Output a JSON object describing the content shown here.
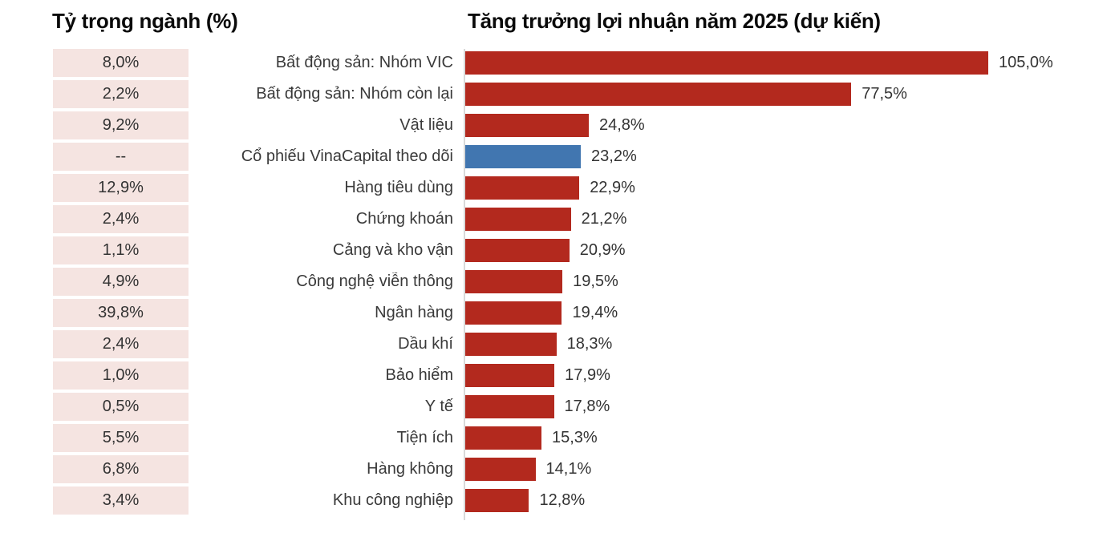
{
  "header": {
    "left_title": "Tỷ trọng ngành (%)",
    "right_title": "Tăng trưởng lợi nhuận năm 2025 (dự kiến)"
  },
  "colors": {
    "bar_red": "#b3291e",
    "bar_blue": "#4176b0",
    "weight_cell_bg": "#f5e4e1",
    "axis_line": "#d9d9d9",
    "title_text": "#0a0a0a",
    "body_text": "#3a3a3a"
  },
  "chart_data": {
    "type": "bar",
    "orientation": "horizontal",
    "title": "Tăng trưởng lợi nhuận năm 2025 (dự kiến)",
    "weight_column_title": "Tỷ trọng ngành (%)",
    "value_axis_max": 105.0,
    "grid": false,
    "legend": false,
    "rows": [
      {
        "weight": "8,0%",
        "label": "Bất động sản: Nhóm VIC",
        "value": 105.0,
        "value_label": "105,0%",
        "highlight": false
      },
      {
        "weight": "2,2%",
        "label": "Bất động sản: Nhóm còn lại",
        "value": 77.5,
        "value_label": "77,5%",
        "highlight": false
      },
      {
        "weight": "9,2%",
        "label": "Vật liệu",
        "value": 24.8,
        "value_label": "24,8%",
        "highlight": false
      },
      {
        "weight": "--",
        "label": "Cổ phiếu VinaCapital theo dõi",
        "value": 23.2,
        "value_label": "23,2%",
        "highlight": true
      },
      {
        "weight": "12,9%",
        "label": "Hàng tiêu dùng",
        "value": 22.9,
        "value_label": "22,9%",
        "highlight": false
      },
      {
        "weight": "2,4%",
        "label": "Chứng khoán",
        "value": 21.2,
        "value_label": "21,2%",
        "highlight": false
      },
      {
        "weight": "1,1%",
        "label": "Cảng và kho vận",
        "value": 20.9,
        "value_label": "20,9%",
        "highlight": false
      },
      {
        "weight": "4,9%",
        "label": "Công nghệ viễn thông",
        "value": 19.5,
        "value_label": "19,5%",
        "highlight": false
      },
      {
        "weight": "39,8%",
        "label": "Ngân hàng",
        "value": 19.4,
        "value_label": "19,4%",
        "highlight": false
      },
      {
        "weight": "2,4%",
        "label": "Dầu khí",
        "value": 18.3,
        "value_label": "18,3%",
        "highlight": false
      },
      {
        "weight": "1,0%",
        "label": "Bảo hiểm",
        "value": 17.9,
        "value_label": "17,9%",
        "highlight": false
      },
      {
        "weight": "0,5%",
        "label": "Y tế",
        "value": 17.8,
        "value_label": "17,8%",
        "highlight": false
      },
      {
        "weight": "5,5%",
        "label": "Tiện ích",
        "value": 15.3,
        "value_label": "15,3%",
        "highlight": false
      },
      {
        "weight": "6,8%",
        "label": "Hàng không",
        "value": 14.1,
        "value_label": "14,1%",
        "highlight": false
      },
      {
        "weight": "3,4%",
        "label": "Khu công nghiệp",
        "value": 12.8,
        "value_label": "12,8%",
        "highlight": false
      }
    ]
  }
}
